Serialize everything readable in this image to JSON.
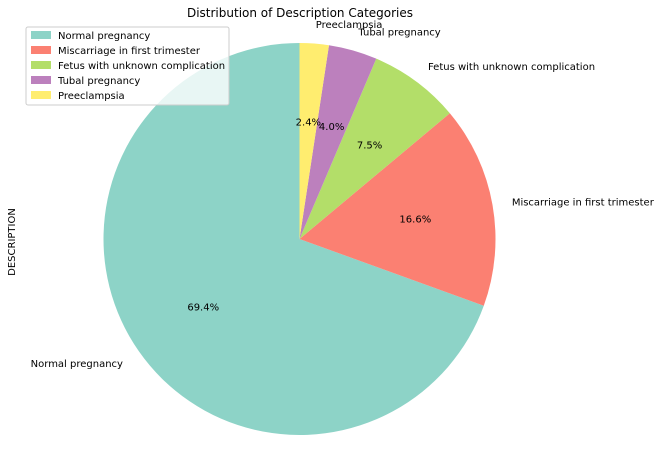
{
  "chart_data": {
    "type": "pie",
    "title": "Distribution of Description Categories",
    "ylabel": "DESCRIPTION",
    "categories": [
      "Normal pregnancy",
      "Miscarriage in first trimester",
      "Fetus with unknown complication",
      "Tubal pregnancy",
      "Preeclampsia"
    ],
    "values": [
      69.4,
      16.6,
      7.5,
      4.0,
      2.4
    ],
    "percent_labels": [
      "69.4%",
      "16.6%",
      "7.5%",
      "4.0%",
      "2.4%"
    ],
    "colors": [
      "#8dd3c7",
      "#fb8072",
      "#b3de69",
      "#bc80bd",
      "#ffed6f"
    ],
    "legend_position": "upper-left",
    "start_angle_deg": 90,
    "direction": "counterclockwise"
  }
}
